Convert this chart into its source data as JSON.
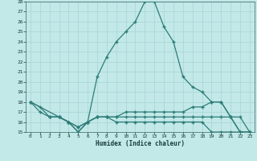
{
  "xlabel": "Humidex (Indice chaleur)",
  "bg_color": "#c2e8e8",
  "line_color": "#2e7d78",
  "grid_color": "#a8d4d4",
  "xlim": [
    -0.5,
    23.5
  ],
  "ylim": [
    15,
    28
  ],
  "xticks": [
    0,
    1,
    2,
    3,
    4,
    5,
    6,
    7,
    8,
    9,
    10,
    11,
    12,
    13,
    14,
    15,
    16,
    17,
    18,
    19,
    20,
    21,
    22,
    23
  ],
  "yticks": [
    15,
    16,
    17,
    18,
    19,
    20,
    21,
    22,
    23,
    24,
    25,
    26,
    27,
    28
  ],
  "line1_x": [
    0,
    1,
    2,
    3,
    4,
    5,
    6,
    7,
    8,
    9,
    10,
    11,
    12,
    13,
    14,
    15,
    16,
    17,
    18,
    19,
    20,
    21,
    22,
    23
  ],
  "line1_y": [
    18,
    17.5,
    16.5,
    16.5,
    16,
    15,
    16,
    20.5,
    22.5,
    24,
    25,
    26,
    28,
    28,
    25.5,
    24,
    20.5,
    19.5,
    19,
    18,
    18,
    16.5,
    15,
    15
  ],
  "line2_x": [
    0,
    1,
    2,
    3,
    4,
    5,
    6,
    7,
    8,
    9,
    10,
    11,
    12,
    13,
    14,
    15,
    16,
    17,
    18,
    19,
    20,
    21,
    22,
    23
  ],
  "line2_y": [
    18,
    17,
    16.5,
    16.5,
    16,
    15.5,
    16,
    16.5,
    16.5,
    16.5,
    17,
    17,
    17,
    17,
    17,
    17,
    17,
    17.5,
    17.5,
    18,
    18,
    16.5,
    15,
    15
  ],
  "line3_x": [
    0,
    3,
    4,
    5,
    6,
    7,
    8,
    9,
    10,
    11,
    12,
    13,
    14,
    15,
    16,
    17,
    18,
    19,
    20,
    21,
    22,
    23
  ],
  "line3_y": [
    18,
    16.5,
    16,
    15,
    16,
    16.5,
    16.5,
    16,
    16,
    16,
    16,
    16,
    16,
    16,
    16,
    16,
    16,
    15,
    15,
    15,
    15,
    15
  ],
  "line4_x": [
    2,
    3,
    4,
    5,
    6,
    7,
    8,
    9,
    10,
    11,
    12,
    13,
    14,
    15,
    16,
    17,
    18,
    19,
    20,
    21,
    22,
    23
  ],
  "line4_y": [
    16.5,
    16.5,
    16,
    15.5,
    16,
    16.5,
    16.5,
    16.5,
    16.5,
    16.5,
    16.5,
    16.5,
    16.5,
    16.5,
    16.5,
    16.5,
    16.5,
    16.5,
    16.5,
    16.5,
    16.5,
    15
  ]
}
